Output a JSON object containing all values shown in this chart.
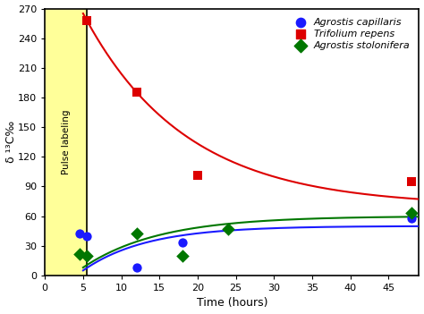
{
  "xlabel": "Time (hours)",
  "ylabel": "δ ¹³C‰",
  "xlim": [
    0,
    49
  ],
  "ylim": [
    0,
    270
  ],
  "xticks": [
    0,
    5,
    10,
    15,
    20,
    25,
    30,
    35,
    40,
    45
  ],
  "yticks": [
    0,
    30,
    60,
    90,
    120,
    150,
    180,
    210,
    240,
    270
  ],
  "pulse_xmax": 5.5,
  "pulse_label_color": "#ffff99",
  "blue_scatter_x": [
    4.5,
    5.5,
    12,
    18,
    48
  ],
  "blue_scatter_y": [
    42,
    40,
    8,
    33,
    58
  ],
  "red_scatter_x": [
    5.5,
    12,
    20,
    48
  ],
  "red_scatter_y": [
    258,
    185,
    101,
    95
  ],
  "green_scatter_x": [
    4.5,
    5.5,
    12,
    18,
    24,
    48
  ],
  "green_scatter_y": [
    22,
    20,
    42,
    20,
    47,
    63
  ],
  "blue_color": "#1a1aff",
  "red_color": "#dd0000",
  "green_color": "#007700",
  "legend_labels": [
    "Agrostis capillaris",
    "Trifolium repens",
    "Agrostis stolonifera"
  ]
}
